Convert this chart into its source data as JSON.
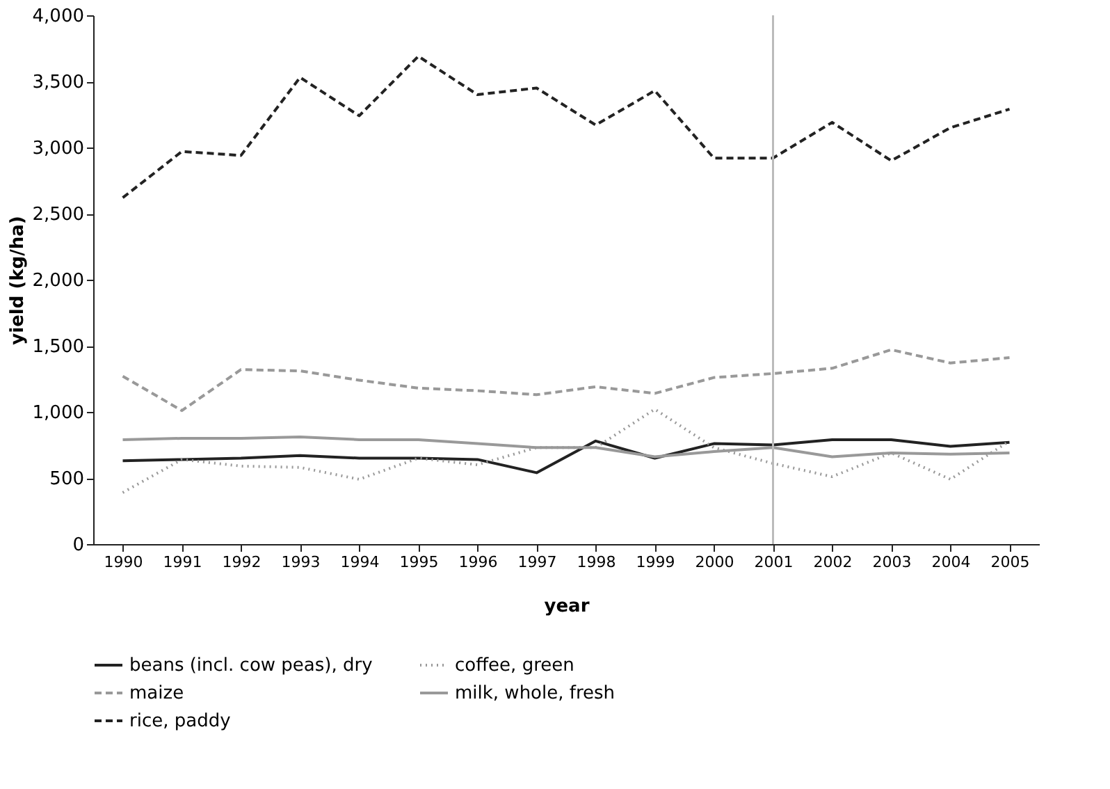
{
  "chart_data": {
    "type": "line",
    "xlabel": "year",
    "ylabel": "yield (kg/ha)",
    "categories": [
      "1990",
      "1991",
      "1992",
      "1993",
      "1994",
      "1995",
      "1996",
      "1997",
      "1998",
      "1999",
      "2000",
      "2001",
      "2002",
      "2003",
      "2004",
      "2005"
    ],
    "series": [
      {
        "name": "beans (incl. cow peas), dry",
        "color": "#222222",
        "line_style": "solid",
        "values": [
          630,
          640,
          650,
          670,
          650,
          650,
          640,
          540,
          780,
          650,
          760,
          750,
          790,
          790,
          740,
          770
        ]
      },
      {
        "name": "coffee, green",
        "color": "#999999",
        "line_style": "dotted",
        "values": [
          390,
          640,
          590,
          580,
          490,
          650,
          600,
          730,
          730,
          1020,
          730,
          610,
          510,
          690,
          490,
          780
        ]
      },
      {
        "name": "maize",
        "color": "#999999",
        "line_style": "dashed",
        "values": [
          1270,
          1010,
          1320,
          1310,
          1240,
          1180,
          1160,
          1130,
          1190,
          1140,
          1260,
          1290,
          1330,
          1470,
          1370,
          1410
        ]
      },
      {
        "name": "milk, whole, fresh",
        "color": "#999999",
        "line_style": "solid",
        "values": [
          790,
          800,
          800,
          810,
          790,
          790,
          760,
          730,
          730,
          660,
          700,
          730,
          660,
          690,
          680,
          690
        ]
      },
      {
        "name": "rice, paddy",
        "color": "#222222",
        "line_style": "dashed",
        "values": [
          2620,
          2970,
          2940,
          3530,
          3240,
          3690,
          3400,
          3450,
          3170,
          3430,
          2920,
          2920,
          3190,
          2900,
          3150,
          3290
        ]
      }
    ],
    "ylim": [
      0,
      4000
    ],
    "yticks": [
      0,
      500,
      {
        "value": 1000,
        "label": "1,000"
      },
      {
        "value": 1500,
        "label": "1,500"
      },
      {
        "value": 2000,
        "label": "2,000"
      },
      {
        "value": 2500,
        "label": "2,500"
      },
      {
        "value": 3000,
        "label": "3,000"
      },
      {
        "value": 3500,
        "label": "3,500"
      },
      {
        "value": 4000,
        "label": "4,000"
      }
    ],
    "ref_lines": [
      {
        "axis": "x",
        "value": "2001",
        "color": "#bbbbbb"
      }
    ],
    "grid": false,
    "legend": "bottom",
    "marker": "none"
  }
}
